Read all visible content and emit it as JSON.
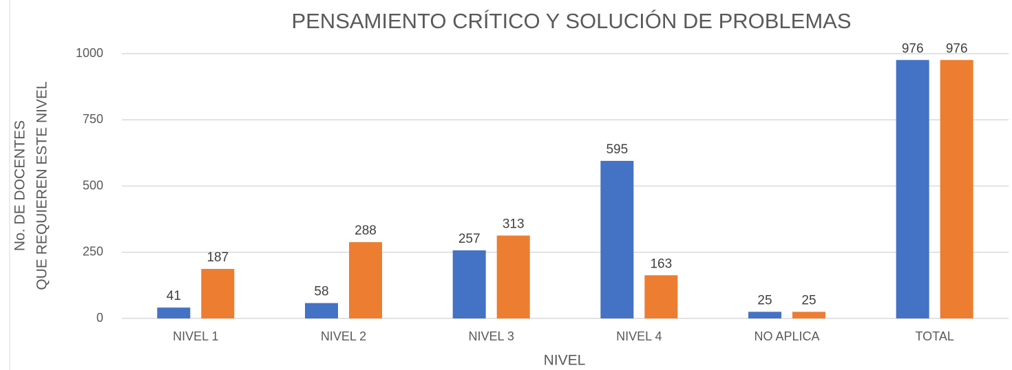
{
  "chart_data": {
    "type": "bar",
    "title": "PENSAMIENTO CRÍTICO Y SOLUCIÓN DE PROBLEMAS",
    "xlabel": "NIVEL",
    "ylabel": [
      "No. DE DOCENTES",
      "QUE REQUIEREN ESTE NIVEL"
    ],
    "categories": [
      "NIVEL 1",
      "NIVEL 2",
      "NIVEL 3",
      "NIVEL 4",
      "NO APLICA",
      "TOTAL"
    ],
    "series": [
      {
        "color": "#4472c4",
        "values": [
          41,
          58,
          257,
          595,
          25,
          976
        ]
      },
      {
        "color": "#ed7d31",
        "values": [
          187,
          288,
          313,
          163,
          25,
          976
        ]
      }
    ],
    "ylim": [
      0,
      1000
    ],
    "yticks": [
      0,
      250,
      500,
      750,
      1000
    ],
    "grid": true
  }
}
